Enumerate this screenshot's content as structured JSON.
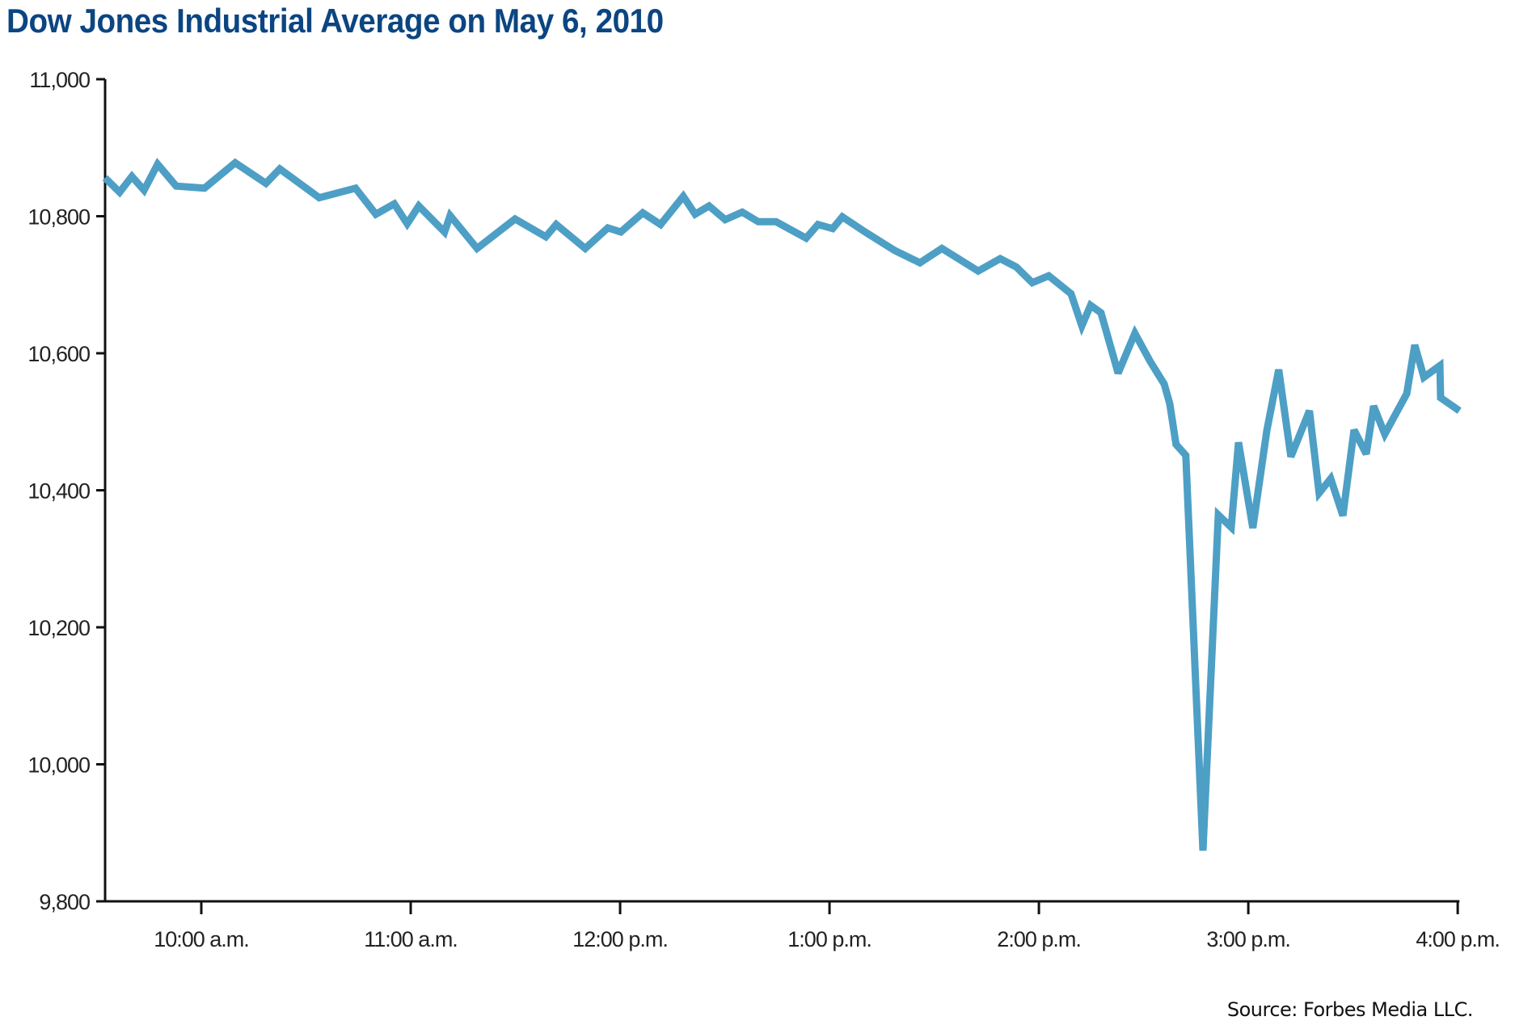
{
  "chart_data": {
    "type": "line",
    "title": "Dow Jones Industrial Average on May 6, 2010",
    "source": "Source: Forbes Media LLC.",
    "xlabel": "",
    "ylabel": "",
    "ylim": [
      9800,
      11000
    ],
    "y_ticks": [
      9800,
      10000,
      10200,
      10400,
      10600,
      10800,
      11000
    ],
    "y_tick_labels": [
      "9,800",
      "10,000",
      "10,200",
      "10,400",
      "10,600",
      "10,800",
      "11,000"
    ],
    "x_ticks_minutes_since_930": [
      30,
      90,
      150,
      210,
      270,
      330,
      390
    ],
    "x_tick_labels": [
      "10:00 a.m.",
      "11:00 a.m.",
      "12:00 p.m.",
      "1:00 p.m.",
      "2:00 p.m.",
      "3:00 p.m.",
      "4:00 p.m."
    ],
    "xlim_minutes_since_930": [
      2.4,
      390.5
    ],
    "grid": false,
    "legend": null,
    "line_color": "#4d9fc5",
    "series": [
      {
        "name": "DJIA",
        "x": [
          "9:32",
          "9:37",
          "9:40",
          "9:44",
          "9:48",
          "9:53",
          "10:01",
          "10:10",
          "10:19",
          "10:22",
          "10:34",
          "10:44",
          "10:50",
          "10:55",
          "10:59",
          "11:02",
          "11:10",
          "11:11",
          "11:19",
          "11:30",
          "11:39",
          "11:42",
          "11:50",
          "11:57",
          "12:00",
          "12:07",
          "12:12",
          "12:18",
          "12:22",
          "12:25",
          "12:30",
          "12:35",
          "12:40",
          "12:45",
          "12:53",
          "12:57",
          "13:01",
          "13:04",
          "13:10",
          "13:19",
          "13:26",
          "13:32",
          "13:43",
          "13:49",
          "13:54",
          "13:58",
          "14:03",
          "14:09",
          "14:12",
          "14:15",
          "14:18",
          "14:23",
          "14:28",
          "14:32",
          "14:36",
          "14:37",
          "14:39",
          "14:42",
          "14:47",
          "14:51",
          "14:55",
          "14:57",
          "15:01",
          "15:05",
          "15:09",
          "15:12",
          "15:18",
          "15:20",
          "15:24",
          "15:27",
          "15:30",
          "15:34",
          "15:36",
          "15:39",
          "15:45",
          "15:48",
          "15:50",
          "15:55",
          "15:55",
          "16:00"
        ],
        "minutes": [
          2.4,
          6.6,
          10.1,
          13.6,
          17.5,
          22.8,
          30.9,
          39.7,
          48.5,
          52.5,
          63.8,
          74.2,
          80.0,
          85.3,
          89.0,
          92.3,
          99.7,
          101.3,
          109.0,
          119.9,
          128.7,
          131.7,
          140.0,
          146.5,
          150.2,
          156.5,
          161.6,
          168.1,
          171.5,
          175.5,
          180.1,
          185.0,
          189.6,
          194.7,
          203.3,
          206.7,
          210.9,
          213.7,
          220.2,
          228.7,
          235.9,
          242.2,
          252.6,
          258.9,
          263.5,
          268.1,
          272.8,
          279.2,
          282.3,
          284.8,
          287.8,
          292.7,
          297.5,
          301.9,
          305.9,
          307.5,
          309.3,
          312.1,
          317.0,
          321.4,
          325.1,
          327.2,
          331.3,
          335.3,
          338.7,
          342.2,
          347.5,
          350.3,
          353.6,
          357.1,
          360.3,
          363.8,
          365.9,
          369.1,
          375.4,
          377.7,
          380.3,
          384.9,
          385.1,
          390.5
        ],
        "values": [
          10856,
          10835,
          10858,
          10838,
          10876,
          10844,
          10841,
          10878,
          10848,
          10869,
          10827,
          10841,
          10803,
          10818,
          10789,
          10815,
          10777,
          10801,
          10753,
          10796,
          10770,
          10788,
          10753,
          10783,
          10777,
          10805,
          10788,
          10829,
          10803,
          10815,
          10795,
          10806,
          10792,
          10792,
          10768,
          10788,
          10782,
          10799,
          10777,
          10750,
          10732,
          10753,
          10720,
          10738,
          10726,
          10703,
          10713,
          10687,
          10640,
          10670,
          10659,
          10571,
          10629,
          10588,
          10555,
          10526,
          10467,
          10451,
          9874,
          10364,
          10346,
          10470,
          10345,
          10487,
          10576,
          10449,
          10516,
          10396,
          10417,
          10363,
          10488,
          10453,
          10523,
          10482,
          10541,
          10612,
          10565,
          10582,
          10535,
          10516
        ]
      }
    ],
    "annotations": []
  }
}
